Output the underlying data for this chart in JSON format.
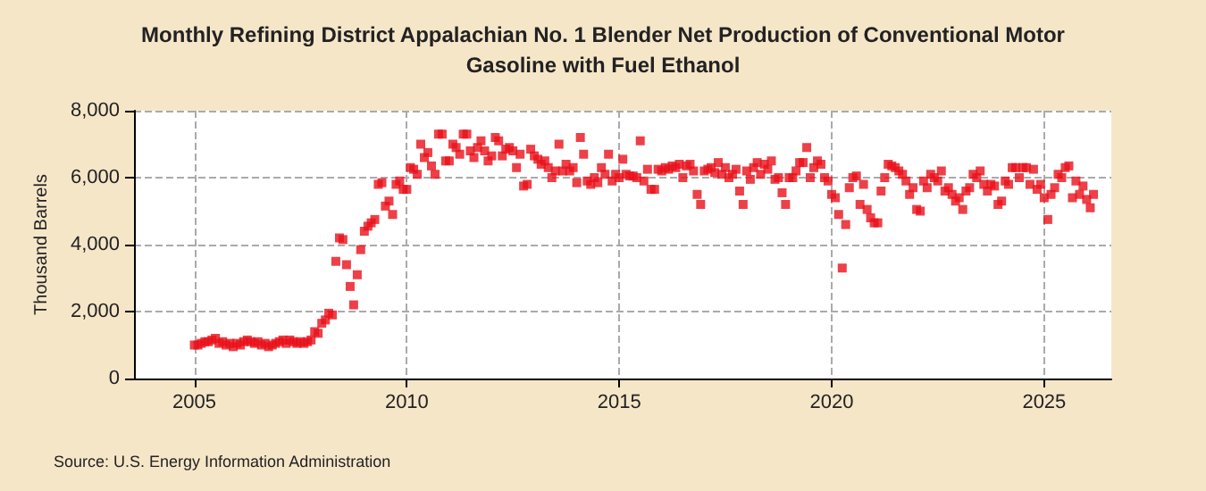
{
  "chart_data": {
    "type": "scatter",
    "title": "Monthly Refining District Appalachian No. 1 Blender Net Production of Conventional Motor Gasoline with Fuel Ethanol",
    "ylabel": "Thousand Barrels",
    "annotations": [
      "Source: U.S. Energy Information Administration"
    ],
    "marker": "square",
    "grid": true,
    "xlim": [
      "2003-08",
      "2026-08"
    ],
    "xticks": [
      "2005",
      "2010",
      "2015",
      "2020",
      "2025"
    ],
    "ylim": [
      0,
      8000
    ],
    "yticks": [
      0,
      {
        "value": 2000,
        "label": "2,000"
      },
      {
        "value": 4000,
        "label": "4,000"
      },
      {
        "value": 6000,
        "label": "6,000"
      },
      {
        "value": 8000,
        "label": "8,000"
      }
    ],
    "x": [
      "2005-01",
      "2005-02",
      "2005-03",
      "2005-04",
      "2005-05",
      "2005-06",
      "2005-07",
      "2005-08",
      "2005-09",
      "2005-10",
      "2005-11",
      "2005-12",
      "2006-01",
      "2006-02",
      "2006-03",
      "2006-04",
      "2006-05",
      "2006-06",
      "2006-07",
      "2006-08",
      "2006-09",
      "2006-10",
      "2006-11",
      "2006-12",
      "2007-01",
      "2007-02",
      "2007-03",
      "2007-04",
      "2007-05",
      "2007-06",
      "2007-07",
      "2007-08",
      "2007-09",
      "2007-10",
      "2007-11",
      "2007-12",
      "2008-01",
      "2008-02",
      "2008-03",
      "2008-04",
      "2008-05",
      "2008-06",
      "2008-07",
      "2008-08",
      "2008-09",
      "2008-10",
      "2008-11",
      "2008-12",
      "2009-01",
      "2009-02",
      "2009-03",
      "2009-04",
      "2009-05",
      "2009-06",
      "2009-07",
      "2009-08",
      "2009-09",
      "2009-10",
      "2009-11",
      "2009-12",
      "2010-01",
      "2010-02",
      "2010-03",
      "2010-04",
      "2010-05",
      "2010-06",
      "2010-07",
      "2010-08",
      "2010-09",
      "2010-10",
      "2010-11",
      "2010-12",
      "2011-01",
      "2011-02",
      "2011-03",
      "2011-04",
      "2011-05",
      "2011-06",
      "2011-07",
      "2011-08",
      "2011-09",
      "2011-10",
      "2011-11",
      "2011-12",
      "2012-01",
      "2012-02",
      "2012-03",
      "2012-04",
      "2012-05",
      "2012-06",
      "2012-07",
      "2012-08",
      "2012-09",
      "2012-10",
      "2012-11",
      "2012-12",
      "2013-01",
      "2013-02",
      "2013-03",
      "2013-04",
      "2013-05",
      "2013-06",
      "2013-07",
      "2013-08",
      "2013-09",
      "2013-10",
      "2013-11",
      "2013-12",
      "2014-01",
      "2014-02",
      "2014-03",
      "2014-04",
      "2014-05",
      "2014-06",
      "2014-07",
      "2014-08",
      "2014-09",
      "2014-10",
      "2014-11",
      "2014-12",
      "2015-01",
      "2015-02",
      "2015-03",
      "2015-04",
      "2015-05",
      "2015-06",
      "2015-07",
      "2015-08",
      "2015-09",
      "2015-10",
      "2015-11",
      "2015-12",
      "2016-01",
      "2016-02",
      "2016-03",
      "2016-04",
      "2016-05",
      "2016-06",
      "2016-07",
      "2016-08",
      "2016-09",
      "2016-10",
      "2016-11",
      "2016-12",
      "2017-01",
      "2017-02",
      "2017-03",
      "2017-04",
      "2017-05",
      "2017-06",
      "2017-07",
      "2017-08",
      "2017-09",
      "2017-10",
      "2017-11",
      "2017-12",
      "2018-01",
      "2018-02",
      "2018-03",
      "2018-04",
      "2018-05",
      "2018-06",
      "2018-07",
      "2018-08",
      "2018-09",
      "2018-10",
      "2018-11",
      "2018-12",
      "2019-01",
      "2019-02",
      "2019-03",
      "2019-04",
      "2019-05",
      "2019-06",
      "2019-07",
      "2019-08",
      "2019-09",
      "2019-10",
      "2019-11",
      "2019-12",
      "2020-01",
      "2020-02",
      "2020-03",
      "2020-04",
      "2020-05",
      "2020-06",
      "2020-07",
      "2020-08",
      "2020-09",
      "2020-10",
      "2020-11",
      "2020-12",
      "2021-01",
      "2021-02",
      "2021-03",
      "2021-04",
      "2021-05",
      "2021-06",
      "2021-07",
      "2021-08",
      "2021-09",
      "2021-10",
      "2021-11",
      "2021-12",
      "2022-01",
      "2022-02",
      "2022-03",
      "2022-04",
      "2022-05",
      "2022-06",
      "2022-07",
      "2022-08",
      "2022-09",
      "2022-10",
      "2022-11",
      "2022-12",
      "2023-01",
      "2023-02",
      "2023-03",
      "2023-04",
      "2023-05",
      "2023-06",
      "2023-07",
      "2023-08",
      "2023-09",
      "2023-10",
      "2023-11",
      "2023-12",
      "2024-01",
      "2024-02",
      "2024-03",
      "2024-04",
      "2024-05",
      "2024-06",
      "2024-07",
      "2024-08",
      "2024-09",
      "2024-10",
      "2024-11",
      "2024-12",
      "2025-01",
      "2025-02",
      "2025-03",
      "2025-04",
      "2025-05",
      "2025-06",
      "2025-07",
      "2025-08",
      "2025-09",
      "2025-10",
      "2025-11",
      "2025-12",
      "2026-01",
      "2026-02",
      "2026-03"
    ],
    "series": [
      {
        "color": "#e8101a",
        "values": [
          1000,
          1000,
          1050,
          1100,
          1100,
          1150,
          1200,
          1050,
          1100,
          1000,
          1050,
          950,
          1050,
          1000,
          1100,
          1150,
          1100,
          1050,
          1100,
          1000,
          1050,
          950,
          1000,
          1050,
          1100,
          1150,
          1050,
          1150,
          1100,
          1050,
          1100,
          1050,
          1100,
          1150,
          1400,
          1350,
          1650,
          1750,
          1950,
          1900,
          3500,
          4200,
          4150,
          3400,
          2750,
          2200,
          3100,
          3850,
          4400,
          4550,
          4650,
          4750,
          5800,
          5850,
          5150,
          5300,
          4900,
          5800,
          5900,
          5650,
          5650,
          6300,
          6250,
          6100,
          7000,
          6600,
          6750,
          6350,
          6100,
          7300,
          7300,
          6500,
          6500,
          7000,
          6900,
          6700,
          7300,
          7300,
          6800,
          6600,
          6900,
          7100,
          6800,
          6500,
          6650,
          7200,
          7100,
          6650,
          6850,
          6900,
          6800,
          6300,
          6700,
          5750,
          5800,
          6850,
          6650,
          6550,
          6400,
          6500,
          6300,
          6000,
          6200,
          7000,
          6200,
          6400,
          6200,
          6300,
          5850,
          7200,
          6700,
          5900,
          5800,
          6000,
          5850,
          6300,
          6100,
          6700,
          5900,
          6100,
          6000,
          6550,
          6100,
          6050,
          6050,
          6000,
          7100,
          5900,
          6250,
          5650,
          5650,
          6250,
          6200,
          6300,
          6250,
          6350,
          6300,
          6400,
          6000,
          6350,
          6400,
          6200,
          5500,
          5200,
          6200,
          6250,
          6300,
          6150,
          6450,
          6100,
          6300,
          6000,
          6100,
          6250,
          5600,
          5200,
          6200,
          5950,
          6300,
          6450,
          6100,
          6400,
          6250,
          6500,
          5950,
          6000,
          5550,
          5200,
          6000,
          6000,
          6200,
          6450,
          6450,
          6900,
          6000,
          6300,
          6500,
          6400,
          6000,
          5900,
          5500,
          5400,
          4900,
          3300,
          4600,
          5700,
          6000,
          6050,
          5200,
          5800,
          5050,
          4800,
          4650,
          4650,
          5600,
          6000,
          6400,
          6350,
          6300,
          6200,
          6100,
          5900,
          5500,
          5700,
          5050,
          5000,
          5900,
          5700,
          6100,
          6000,
          5900,
          6200,
          5600,
          5700,
          5500,
          5300,
          5400,
          5050,
          5600,
          5700,
          6100,
          6000,
          6200,
          5800,
          5600,
          5800,
          5750,
          5200,
          5300,
          5900,
          5800,
          6300,
          6300,
          6000,
          6300,
          6300,
          5800,
          6250,
          5650,
          5800,
          5400,
          4750,
          5500,
          5700,
          6100,
          6000,
          6300,
          6350,
          5400,
          5900,
          5500,
          5750,
          5350,
          5100,
          5500
        ]
      }
    ]
  }
}
